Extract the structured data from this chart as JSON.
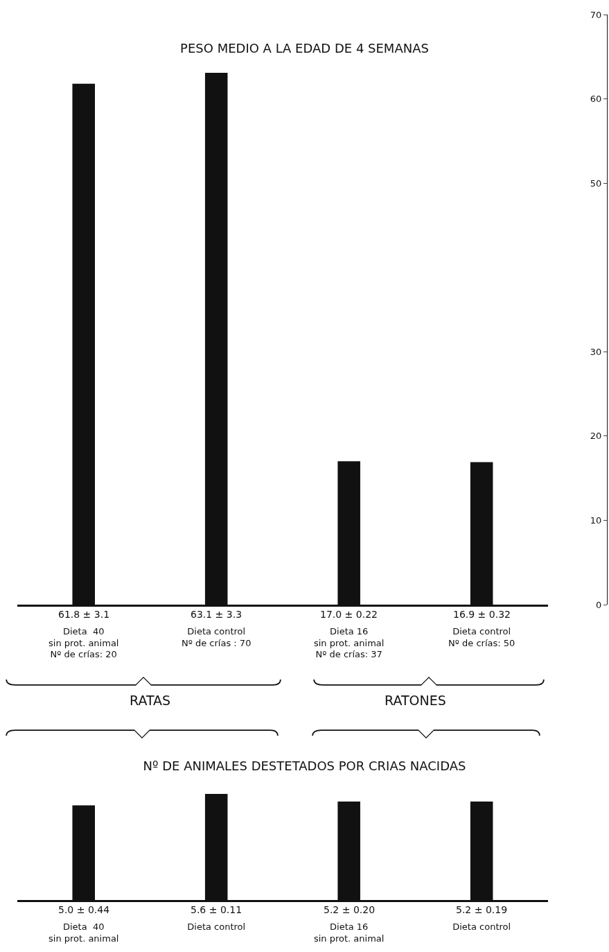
{
  "chart_data": [
    {
      "type": "bar",
      "title": "PESO MEDIO A LA EDAD DE 4 SEMANAS",
      "categories": [
        "Dieta  40\nsin prot. animal\nNº de crías: 20",
        "Dieta control\nNº de crías : 70",
        "Dieta 16\nsin prot. animal\nNº de crías: 37",
        "Dieta control\nNº de crías: 50"
      ],
      "values": [
        61.8,
        63.1,
        17.0,
        16.9
      ],
      "value_labels": [
        "61.8 ± 3.1",
        "63.1 ± 3.3",
        "17.0 ± 0.22",
        "16.9 ± 0.32"
      ],
      "color": "#111111",
      "ylim": [
        0,
        70
      ],
      "yticks": [
        0,
        10,
        20,
        30,
        50,
        60,
        70
      ],
      "grid": false,
      "annotations": [
        "RATAS",
        "RATONES"
      ]
    },
    {
      "type": "bar",
      "title": "Nº DE ANIMALES DESTETADOS POR CRIAS NACIDAS",
      "categories": [
        "Dieta  40\nsin prot. animal",
        "Dieta control",
        "Dieta 16\nsin prot. animal",
        "Dieta control"
      ],
      "values": [
        5.0,
        5.6,
        5.2,
        5.2
      ],
      "value_labels": [
        "5.0 ± 0.44",
        "5.6 ± 0.11",
        "5.2 ± 0.20",
        "5.2 ± 0.19"
      ],
      "color": "#111111",
      "ylim": [
        0,
        5.6
      ],
      "grid": false,
      "tick_labels": "x"
    }
  ]
}
